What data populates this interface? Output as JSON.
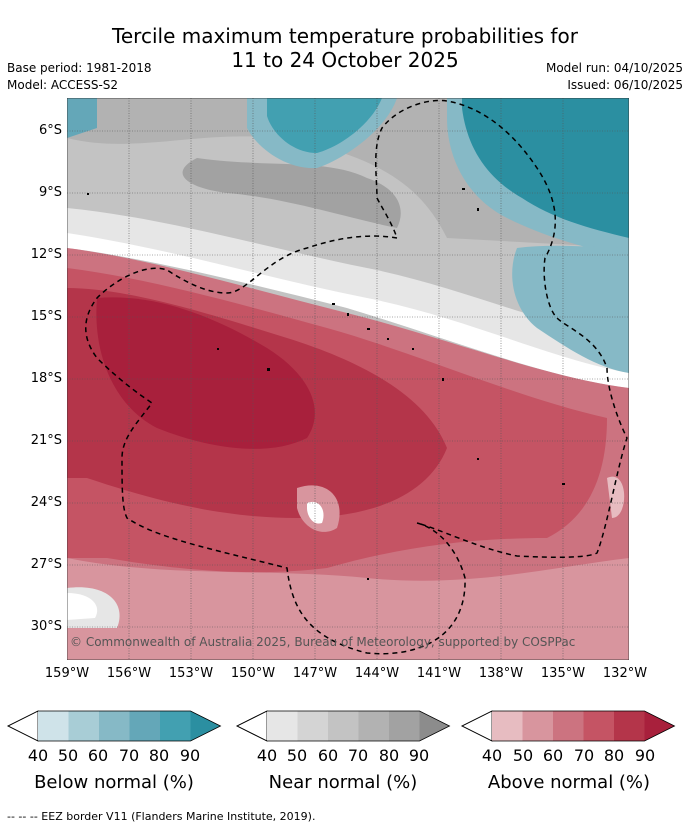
{
  "title_line1": "Tercile maximum temperature probabilities for",
  "title_line2": "11 to 24 October 2025",
  "base_period": "Base period: 1981-2018",
  "model": "Model: ACCESS-S2",
  "model_run": "Model run: 04/10/2025",
  "issued": "Issued: 06/10/2025",
  "lat_labels": [
    "6°S",
    "9°S",
    "12°S",
    "15°S",
    "18°S",
    "21°S",
    "24°S",
    "27°S",
    "30°S"
  ],
  "lon_labels": [
    "159°W",
    "156°W",
    "153°W",
    "150°W",
    "147°W",
    "144°W",
    "141°W",
    "138°W",
    "135°W",
    "132°W"
  ],
  "copyright": "© Commonwealth of Australia 2025, Bureau of Meteorology, supported by COSPPac",
  "colorbars": [
    {
      "name": "Below normal (%)",
      "ticks": [
        "40",
        "50",
        "60",
        "70",
        "80",
        "90"
      ],
      "colors": [
        "#cfe3e9",
        "#a8cdd6",
        "#86b9c6",
        "#64a7b8",
        "#42a0b1",
        "#2b8fa1"
      ]
    },
    {
      "name": "Near normal (%)",
      "ticks": [
        "40",
        "50",
        "60",
        "70",
        "80",
        "90"
      ],
      "colors": [
        "#e6e6e6",
        "#d4d4d4",
        "#c3c3c3",
        "#b2b2b2",
        "#a2a2a2",
        "#8c8c8c"
      ]
    },
    {
      "name": "Above normal (%)",
      "ticks": [
        "40",
        "50",
        "60",
        "70",
        "80",
        "90"
      ],
      "colors": [
        "#e7bcc1",
        "#d8959e",
        "#cc7380",
        "#c55464",
        "#b4354a",
        "#a8203c"
      ]
    }
  ],
  "footer": "--  --  -- EEZ border V11 (Flanders Marine Institute, 2019)."
}
